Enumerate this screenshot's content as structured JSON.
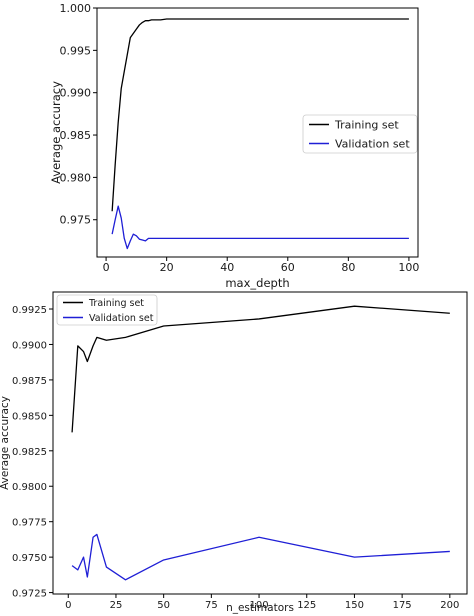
{
  "chart_data": [
    {
      "type": "line",
      "title": "",
      "xlabel": "max_depth",
      "ylabel": "Average accuracy",
      "xlim": [
        -3,
        103
      ],
      "ylim": [
        0.9706,
        1.0
      ],
      "x_ticks": [
        0,
        20,
        40,
        60,
        80,
        100
      ],
      "y_ticks": [
        0.975,
        0.98,
        0.985,
        0.99,
        0.995,
        1.0
      ],
      "x_tick_labels": [
        "0",
        "20",
        "40",
        "60",
        "80",
        "100"
      ],
      "y_tick_labels": [
        "0.975",
        "0.980",
        "0.985",
        "0.990",
        "0.995",
        "1.000"
      ],
      "grid": false,
      "legend_position": "center-right",
      "series": [
        {
          "name": "Training set",
          "color": "#000000",
          "x": [
            2,
            3,
            4,
            5,
            6,
            7,
            8,
            9,
            10,
            11,
            12,
            13,
            14,
            15,
            16,
            18,
            20,
            30,
            40,
            50,
            60,
            70,
            80,
            90,
            100
          ],
          "y": [
            0.976,
            0.9815,
            0.9865,
            0.9905,
            0.9925,
            0.9945,
            0.9965,
            0.997,
            0.9975,
            0.998,
            0.9983,
            0.9985,
            0.9985,
            0.9986,
            0.9986,
            0.9986,
            0.9987,
            0.9987,
            0.9987,
            0.9987,
            0.9987,
            0.9987,
            0.9987,
            0.9987,
            0.9987
          ]
        },
        {
          "name": "Validation set",
          "color": "#1f1fd6",
          "x": [
            2,
            3,
            4,
            5,
            6,
            7,
            8,
            9,
            10,
            11,
            12,
            13,
            14,
            15,
            16,
            18,
            20,
            30,
            40,
            50,
            60,
            70,
            80,
            90,
            100
          ],
          "y": [
            0.9733,
            0.975,
            0.9766,
            0.9752,
            0.9728,
            0.9716,
            0.9725,
            0.9733,
            0.9731,
            0.9727,
            0.9726,
            0.9725,
            0.9728,
            0.9728,
            0.9728,
            0.9728,
            0.9728,
            0.9728,
            0.9728,
            0.9728,
            0.9728,
            0.9728,
            0.9728,
            0.9728,
            0.9728
          ]
        }
      ]
    },
    {
      "type": "line",
      "title": "",
      "xlabel": "n_estimators",
      "ylabel": "Average accuracy",
      "xlim": [
        -8,
        209
      ],
      "ylim": [
        0.9724,
        0.9937
      ],
      "x_ticks": [
        0,
        25,
        50,
        75,
        100,
        125,
        150,
        175,
        200
      ],
      "y_ticks": [
        0.9725,
        0.975,
        0.9775,
        0.98,
        0.9825,
        0.985,
        0.9875,
        0.99,
        0.9925
      ],
      "x_tick_labels": [
        "0",
        "25",
        "50",
        "75",
        "100",
        "125",
        "150",
        "175",
        "200"
      ],
      "y_tick_labels": [
        "0.9725",
        "0.9750",
        "0.9775",
        "0.9800",
        "0.9825",
        "0.9850",
        "0.9875",
        "0.9900",
        "0.9925"
      ],
      "grid": false,
      "legend_position": "top-left",
      "series": [
        {
          "name": "Training set",
          "color": "#000000",
          "x": [
            2,
            5,
            8,
            10,
            13,
            15,
            20,
            30,
            50,
            100,
            150,
            200
          ],
          "y": [
            0.9838,
            0.9899,
            0.9895,
            0.9888,
            0.9899,
            0.9905,
            0.9903,
            0.9905,
            0.9913,
            0.9918,
            0.9927,
            0.9922
          ]
        },
        {
          "name": "Validation set",
          "color": "#1f1fd6",
          "x": [
            2,
            5,
            8,
            10,
            13,
            15,
            20,
            30,
            50,
            100,
            150,
            200
          ],
          "y": [
            0.9744,
            0.9741,
            0.975,
            0.9736,
            0.9764,
            0.9766,
            0.9743,
            0.9734,
            0.9748,
            0.9764,
            0.975,
            0.9754
          ]
        }
      ]
    }
  ]
}
